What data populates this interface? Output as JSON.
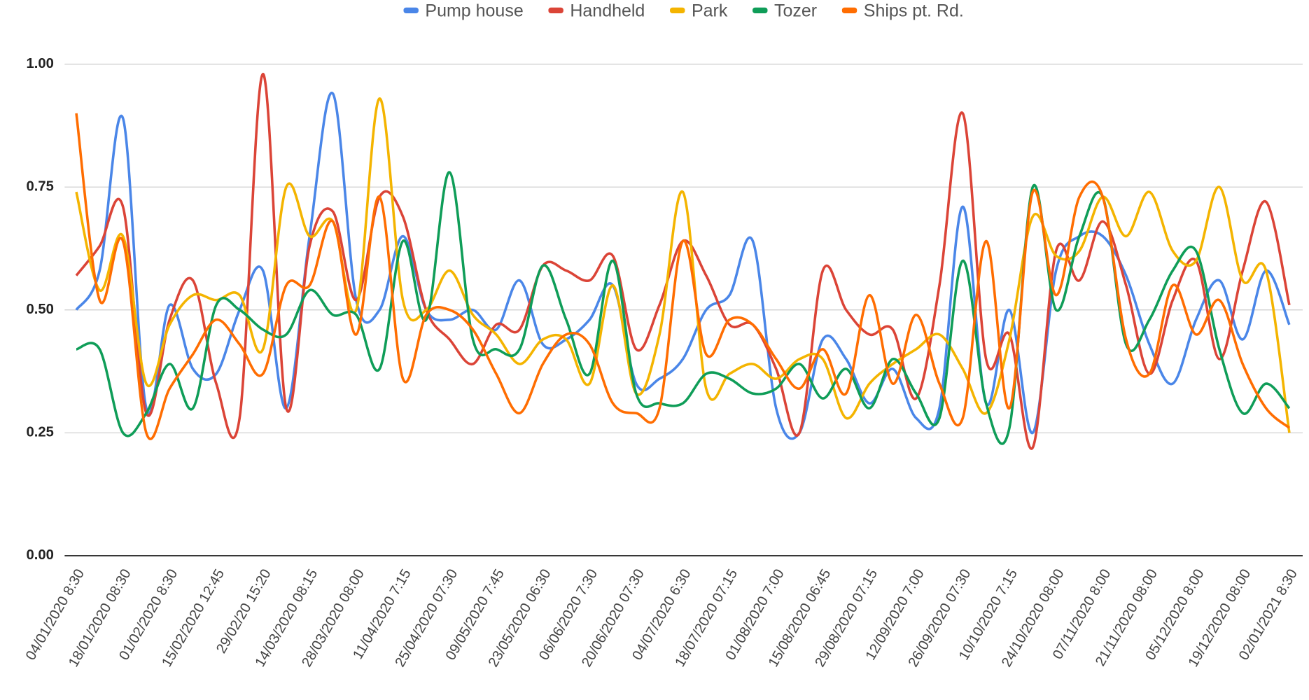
{
  "chart_data": {
    "type": "line",
    "smooth": true,
    "grid": true,
    "legend": "top",
    "categories": [
      "04/01/2020 8:30",
      null,
      "18/01/2020 08:30",
      null,
      "01/02/2020 8:30",
      null,
      "15/02/2020 12:45",
      null,
      "29/02/20 15:20",
      null,
      "14/03/2020 08:15",
      null,
      "28/03/2020 08:00",
      null,
      "11/04/2020 7:15",
      null,
      "25/04/2020 07:30",
      null,
      "09/05/2020 7:45",
      null,
      "23/05/2020 06:30",
      null,
      "06/06/2020 7:30",
      null,
      "20/06/2020 07:30",
      null,
      "04/07/2020 6:30",
      null,
      "18/07/2020 07:15",
      null,
      "01/08/2020 7:00",
      null,
      "15/08/2020 06:45",
      null,
      "29/08/2020 07:15",
      null,
      "12/09/2020 7:00",
      null,
      "26/09/2020 07:30",
      null,
      "10/10/2020 7:15",
      null,
      "24/10/2020 08:00",
      null,
      "07/11/2020 8:00",
      null,
      "21/11/2020 08:00",
      null,
      "05/12/2020 8:00",
      null,
      "19/12/2020 08:00",
      null,
      "02/01/2021 8:30"
    ],
    "ylim": [
      0,
      1
    ],
    "yticks": [
      {
        "value": 0,
        "label": "0.00"
      },
      {
        "value": 0.25,
        "label": "0.25"
      },
      {
        "value": 0.5,
        "label": "0.50"
      },
      {
        "value": 0.75,
        "label": "0.75"
      },
      {
        "value": 1,
        "label": "1.00"
      }
    ],
    "series": [
      {
        "name": "Pump house",
        "color": "#4a86e8",
        "values": [
          0.5,
          0.58,
          0.89,
          0.3,
          0.51,
          0.38,
          0.37,
          0.5,
          0.58,
          0.3,
          0.65,
          0.94,
          0.52,
          0.5,
          0.65,
          0.5,
          0.48,
          0.5,
          0.46,
          0.56,
          0.43,
          0.44,
          0.48,
          0.55,
          0.35,
          0.36,
          0.4,
          0.5,
          0.53,
          0.64,
          0.3,
          0.25,
          0.44,
          0.4,
          0.31,
          0.38,
          0.28,
          0.3,
          0.71,
          0.31,
          0.5,
          0.25,
          0.58,
          0.65,
          0.65,
          0.57,
          0.43,
          0.35,
          0.48,
          0.56,
          0.44,
          0.58,
          0.47
        ]
      },
      {
        "name": "Handheld",
        "color": "#db4437",
        "values": [
          0.57,
          0.63,
          0.71,
          0.29,
          0.48,
          0.56,
          0.35,
          0.28,
          0.98,
          0.3,
          0.63,
          0.7,
          0.52,
          0.73,
          0.69,
          0.5,
          0.44,
          0.39,
          0.47,
          0.46,
          0.59,
          0.58,
          0.56,
          0.61,
          0.42,
          0.51,
          0.64,
          0.57,
          0.47,
          0.47,
          0.38,
          0.25,
          0.58,
          0.5,
          0.45,
          0.46,
          0.32,
          0.55,
          0.9,
          0.4,
          0.45,
          0.22,
          0.62,
          0.56,
          0.68,
          0.55,
          0.37,
          0.52,
          0.6,
          0.4,
          0.58,
          0.72,
          0.51
        ]
      },
      {
        "name": "Park",
        "color": "#f4b400",
        "values": [
          0.74,
          0.54,
          0.65,
          0.35,
          0.47,
          0.53,
          0.52,
          0.53,
          0.42,
          0.75,
          0.65,
          0.68,
          0.5,
          0.93,
          0.52,
          0.5,
          0.58,
          0.49,
          0.45,
          0.39,
          0.44,
          0.44,
          0.35,
          0.55,
          0.33,
          0.45,
          0.74,
          0.34,
          0.37,
          0.39,
          0.36,
          0.4,
          0.4,
          0.28,
          0.35,
          0.39,
          0.42,
          0.45,
          0.38,
          0.29,
          0.44,
          0.69,
          0.61,
          0.62,
          0.73,
          0.65,
          0.74,
          0.62,
          0.6,
          0.75,
          0.56,
          0.58,
          0.25
        ]
      },
      {
        "name": "Tozer",
        "color": "#0f9d58",
        "values": [
          0.42,
          0.42,
          0.25,
          0.29,
          0.39,
          0.3,
          0.51,
          0.5,
          0.46,
          0.45,
          0.54,
          0.49,
          0.49,
          0.38,
          0.64,
          0.48,
          0.78,
          0.44,
          0.42,
          0.42,
          0.59,
          0.48,
          0.37,
          0.6,
          0.33,
          0.31,
          0.31,
          0.37,
          0.36,
          0.33,
          0.34,
          0.39,
          0.32,
          0.38,
          0.3,
          0.4,
          0.33,
          0.28,
          0.6,
          0.31,
          0.26,
          0.75,
          0.5,
          0.65,
          0.73,
          0.43,
          0.48,
          0.58,
          0.62,
          0.42,
          0.29,
          0.35,
          0.3
        ]
      },
      {
        "name": "Ships pt. Rd.",
        "color": "#ff6d01",
        "values": [
          0.9,
          0.52,
          0.64,
          0.25,
          0.34,
          0.41,
          0.48,
          0.43,
          0.37,
          0.55,
          0.55,
          0.68,
          0.45,
          0.73,
          0.36,
          0.49,
          0.5,
          0.46,
          0.37,
          0.29,
          0.39,
          0.45,
          0.43,
          0.31,
          0.29,
          0.3,
          0.64,
          0.41,
          0.48,
          0.47,
          0.4,
          0.34,
          0.42,
          0.33,
          0.53,
          0.35,
          0.49,
          0.35,
          0.28,
          0.64,
          0.3,
          0.74,
          0.53,
          0.73,
          0.73,
          0.44,
          0.37,
          0.55,
          0.45,
          0.52,
          0.39,
          0.3,
          0.26
        ]
      }
    ]
  }
}
